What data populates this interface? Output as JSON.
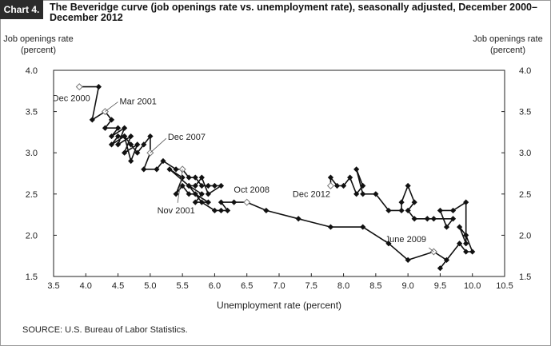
{
  "header": {
    "chart_number": "Chart 4.",
    "title": "The Beveridge curve (job openings rate vs. unemployment rate), seasonally adjusted, December 2000–December 2012"
  },
  "footer": {
    "source": "SOURCE:  U.S. Bureau of Labor Statistics."
  },
  "chart_data": {
    "type": "line",
    "title": "The Beveridge curve (job openings rate vs. unemployment rate), seasonally adjusted, December 2000–December 2012",
    "xlabel": "Unemployment rate (percent)",
    "ylabel_left": [
      "Job openings rate",
      "(percent)"
    ],
    "ylabel_right": [
      "Job openings rate",
      "(percent)"
    ],
    "xlim": [
      3.5,
      10.5
    ],
    "ylim": [
      1.5,
      4.0
    ],
    "x_ticks": [
      "3.5",
      "4.0",
      "4.5",
      "5.0",
      "5.5",
      "6.0",
      "6.5",
      "7.0",
      "7.5",
      "8.0",
      "8.5",
      "9.0",
      "9.5",
      "10.0",
      "10.5"
    ],
    "y_ticks": [
      "1.5",
      "2.0",
      "2.5",
      "3.0",
      "3.5",
      "4.0"
    ],
    "grid": false,
    "series": [
      {
        "points": [
          [
            3.9,
            3.8
          ],
          [
            4.2,
            3.8
          ],
          [
            4.1,
            3.4
          ],
          [
            4.3,
            3.5
          ],
          [
            4.4,
            3.4
          ],
          [
            4.3,
            3.3
          ],
          [
            4.5,
            3.3
          ],
          [
            4.4,
            3.2
          ],
          [
            4.6,
            3.3
          ],
          [
            4.5,
            3.1
          ],
          [
            4.7,
            3.2
          ],
          [
            4.6,
            3.0
          ],
          [
            4.8,
            3.1
          ],
          [
            4.7,
            2.9
          ],
          [
            4.6,
            3.2
          ],
          [
            4.4,
            3.1
          ],
          [
            4.5,
            3.2
          ],
          [
            4.6,
            3.2
          ],
          [
            4.7,
            3.1
          ],
          [
            4.8,
            3.0
          ],
          [
            4.9,
            3.1
          ],
          [
            5.0,
            3.2
          ],
          [
            5.0,
            3.0
          ],
          [
            4.9,
            2.8
          ],
          [
            5.1,
            2.8
          ],
          [
            5.2,
            2.9
          ],
          [
            5.4,
            2.8
          ],
          [
            5.5,
            2.8
          ],
          [
            5.6,
            2.7
          ],
          [
            5.7,
            2.7
          ],
          [
            5.8,
            2.6
          ],
          [
            5.9,
            2.6
          ],
          [
            6.0,
            2.6
          ],
          [
            6.1,
            2.6
          ],
          [
            5.9,
            2.5
          ],
          [
            5.8,
            2.7
          ],
          [
            5.7,
            2.6
          ],
          [
            5.6,
            2.6
          ],
          [
            5.8,
            2.5
          ],
          [
            5.7,
            2.4
          ],
          [
            5.9,
            2.4
          ],
          [
            5.7,
            2.5
          ],
          [
            5.6,
            2.5
          ],
          [
            5.5,
            2.6
          ],
          [
            5.4,
            2.5
          ],
          [
            5.5,
            2.7
          ],
          [
            5.3,
            2.8
          ],
          [
            5.6,
            2.6
          ],
          [
            5.8,
            2.4
          ],
          [
            6.0,
            2.3
          ],
          [
            6.1,
            2.3
          ],
          [
            6.2,
            2.3
          ],
          [
            6.1,
            2.4
          ],
          [
            6.3,
            2.4
          ],
          [
            6.5,
            2.4
          ],
          [
            6.8,
            2.3
          ],
          [
            7.3,
            2.2
          ],
          [
            7.8,
            2.1
          ],
          [
            8.3,
            2.1
          ],
          [
            8.7,
            1.9
          ],
          [
            9.0,
            1.7
          ],
          [
            9.4,
            1.8
          ],
          [
            9.6,
            1.7
          ],
          [
            9.5,
            1.6
          ],
          [
            9.8,
            1.9
          ],
          [
            9.9,
            1.8
          ],
          [
            10.0,
            1.8
          ],
          [
            9.9,
            2.0
          ],
          [
            9.8,
            2.1
          ],
          [
            9.9,
            1.9
          ],
          [
            9.9,
            2.4
          ],
          [
            9.7,
            2.3
          ],
          [
            9.5,
            2.3
          ],
          [
            9.6,
            2.1
          ],
          [
            9.7,
            2.2
          ],
          [
            9.4,
            2.2
          ],
          [
            9.3,
            2.2
          ],
          [
            9.1,
            2.2
          ],
          [
            9.0,
            2.3
          ],
          [
            9.1,
            2.4
          ],
          [
            9.0,
            2.6
          ],
          [
            8.9,
            2.4
          ],
          [
            8.9,
            2.3
          ],
          [
            8.7,
            2.3
          ],
          [
            8.5,
            2.5
          ],
          [
            8.3,
            2.5
          ],
          [
            8.2,
            2.8
          ],
          [
            8.3,
            2.6
          ],
          [
            8.2,
            2.5
          ],
          [
            8.1,
            2.7
          ],
          [
            8.0,
            2.6
          ],
          [
            7.9,
            2.6
          ],
          [
            7.8,
            2.7
          ],
          [
            7.8,
            2.6
          ]
        ],
        "hollow_markers": [
          [
            3.9,
            3.8
          ],
          [
            4.3,
            3.5
          ],
          [
            5.0,
            3.0
          ],
          [
            5.5,
            2.8
          ],
          [
            6.5,
            2.4
          ],
          [
            9.4,
            1.8
          ],
          [
            7.8,
            2.6
          ]
        ]
      }
    ],
    "annotations": [
      {
        "text": "Dec 2000",
        "x": 3.9,
        "y": 3.8
      },
      {
        "text": "Mar 2001",
        "x": 4.3,
        "y": 3.5
      },
      {
        "text": "Dec 2007",
        "x": 5.0,
        "y": 3.0
      },
      {
        "text": "Nov 2001",
        "x": 5.5,
        "y": 2.8
      },
      {
        "text": "Oct 2008",
        "x": 6.5,
        "y": 2.4
      },
      {
        "text": "Dec 2012",
        "x": 7.8,
        "y": 2.6
      },
      {
        "text": "June 2009",
        "x": 9.4,
        "y": 1.8
      }
    ],
    "colors": {
      "line": "#111111",
      "marker": "#111111",
      "hollow_marker_fill": "#ffffff",
      "hollow_marker_stroke": "#777777"
    }
  }
}
